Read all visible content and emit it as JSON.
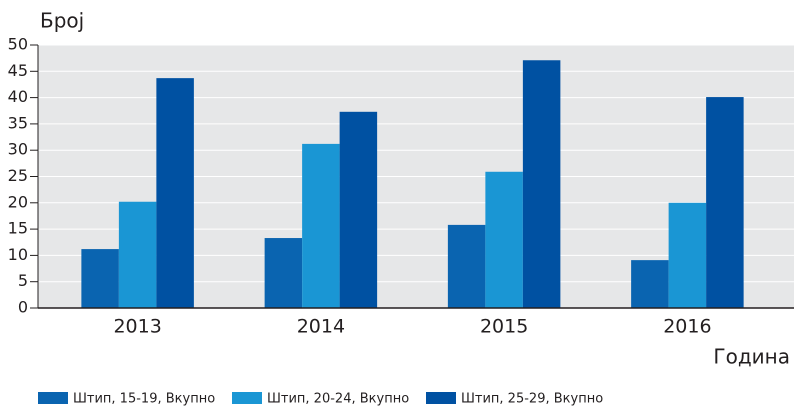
{
  "chart_data": {
    "type": "bar",
    "ylabel": "Број",
    "xlabel": "Година",
    "categories": [
      "2013",
      "2014",
      "2015",
      "2016"
    ],
    "series": [
      {
        "name": "Штип, 15-19, Вкупно",
        "color": "#0a64b0",
        "values": [
          11.2,
          13.3,
          15.8,
          9.1
        ]
      },
      {
        "name": "Штип, 20-24, Вкупно",
        "color": "#1a96d4",
        "values": [
          20.2,
          31.2,
          25.9,
          20.0
        ]
      },
      {
        "name": "Штип, 25-29, Вкупно",
        "color": "#0051a2",
        "values": [
          43.7,
          37.3,
          47.1,
          40.1
        ]
      }
    ],
    "ylim": [
      0,
      50
    ],
    "yticks": [
      0,
      5,
      10,
      15,
      20,
      25,
      30,
      35,
      40,
      45,
      50
    ],
    "grid": true,
    "legend": "bottom"
  }
}
